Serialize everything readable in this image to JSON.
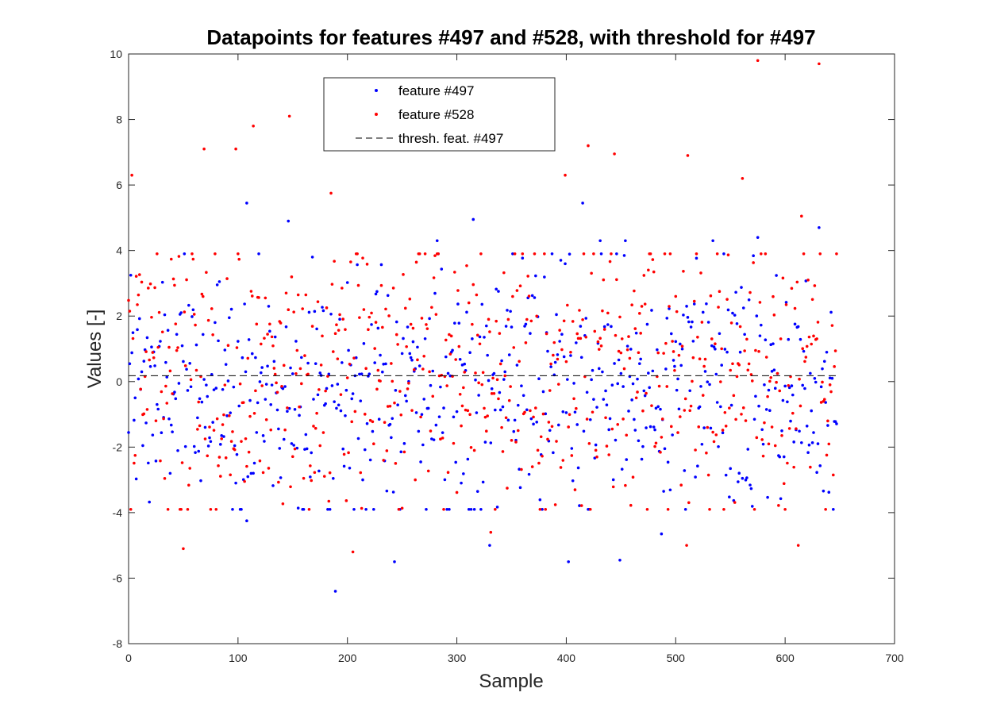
{
  "chart_data": {
    "type": "scatter",
    "title": "Datapoints for features #497 and #528, with threshold for #497",
    "xlabel": "Sample",
    "ylabel": "Values [-]",
    "xlim": [
      0,
      700
    ],
    "ylim": [
      -8,
      10
    ],
    "xticks": [
      "0",
      "100",
      "200",
      "300",
      "400",
      "500",
      "600",
      "700"
    ],
    "yticks": [
      "-8",
      "-6",
      "-4",
      "-2",
      "0",
      "2",
      "4",
      "6",
      "8",
      "10"
    ],
    "grid": false,
    "legend_position": "top-center",
    "n_samples": 648,
    "series": [
      {
        "name": "feature #497",
        "color": "#0000ff",
        "marker": "dot",
        "mean": -0.3,
        "std": 1.9,
        "highlighted_points": [
          [
            108,
            5.45
          ],
          [
            146,
            4.9
          ],
          [
            168,
            3.8
          ],
          [
            189,
            -6.4
          ],
          [
            243,
            -5.5
          ],
          [
            282,
            4.3
          ],
          [
            315,
            4.95
          ],
          [
            330,
            -5.0
          ],
          [
            402,
            -5.5
          ],
          [
            415,
            5.45
          ],
          [
            431,
            4.3
          ],
          [
            449,
            -5.45
          ],
          [
            454,
            4.3
          ],
          [
            487,
            -4.65
          ],
          [
            534,
            4.3
          ],
          [
            575,
            4.4
          ],
          [
            631,
            4.7
          ],
          [
            108,
            -4.25
          ]
        ]
      },
      {
        "name": "feature #528",
        "color": "#ff0000",
        "marker": "dot",
        "mean": 0.2,
        "std": 2.2,
        "highlighted_points": [
          [
            3,
            6.3
          ],
          [
            50,
            -5.1
          ],
          [
            69,
            7.1
          ],
          [
            98,
            7.1
          ],
          [
            114,
            7.8
          ],
          [
            147,
            8.1
          ],
          [
            185,
            5.75
          ],
          [
            205,
            -5.2
          ],
          [
            331,
            -4.6
          ],
          [
            399,
            6.3
          ],
          [
            420,
            7.2
          ],
          [
            444,
            6.95
          ],
          [
            510,
            -5.0
          ],
          [
            511,
            6.9
          ],
          [
            561,
            6.2
          ],
          [
            575,
            9.8
          ],
          [
            612,
            -5.0
          ],
          [
            631,
            9.7
          ],
          [
            615,
            5.05
          ]
        ]
      }
    ],
    "threshold": {
      "name": "thresh. feat. #497",
      "value": 0.18,
      "color": "#000000",
      "style": "dashed"
    }
  }
}
